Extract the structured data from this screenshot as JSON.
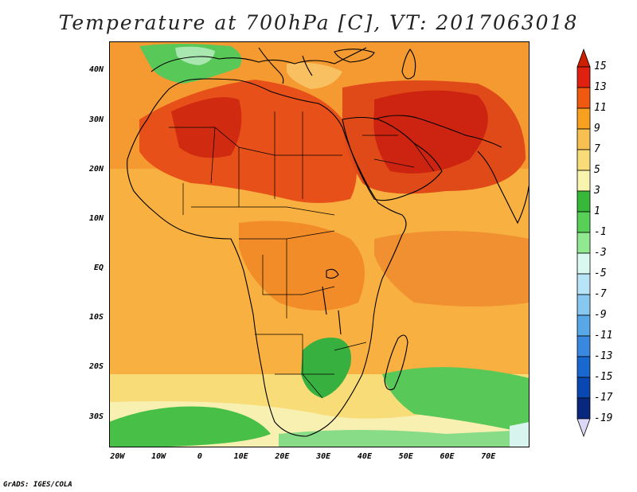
{
  "title": "Temperature at 700hPa [C], VT: 2017063018",
  "footer": "GrADS: IGES/COLA",
  "x_axis": {
    "ticks": [
      "20W",
      "10W",
      "0",
      "10E",
      "20E",
      "30E",
      "40E",
      "50E",
      "60E",
      "70E"
    ],
    "tick_values": [
      -20,
      -10,
      0,
      10,
      20,
      30,
      40,
      50,
      60,
      70
    ],
    "range": [
      -22,
      80
    ]
  },
  "y_axis": {
    "ticks": [
      "40N",
      "30N",
      "20N",
      "10N",
      "EQ",
      "10S",
      "20S",
      "30S"
    ],
    "tick_values": [
      40,
      30,
      20,
      10,
      0,
      -10,
      -20,
      -30
    ],
    "range": [
      -36,
      46
    ]
  },
  "colorbar": {
    "levels": [
      "15",
      "13",
      "11",
      "9",
      "7",
      "5",
      "3",
      "1",
      "-1",
      "-3",
      "-5",
      "-7",
      "-9",
      "-11",
      "-13",
      "-15",
      "-17",
      "-19"
    ],
    "colors": [
      "#a0000a",
      "#e02010",
      "#f05a10",
      "#f8a020",
      "#f8c050",
      "#f8dc78",
      "#f8f4b0",
      "#38b838",
      "#58d058",
      "#90e890",
      "#d8f8f0",
      "#b8e4f8",
      "#88c8f0",
      "#58a8e8",
      "#3888e0",
      "#1868d0",
      "#0848b0",
      "#082880",
      "#080060"
    ],
    "top_cap": "#cc2000",
    "bottom_cap": "#dcd8f8"
  }
}
